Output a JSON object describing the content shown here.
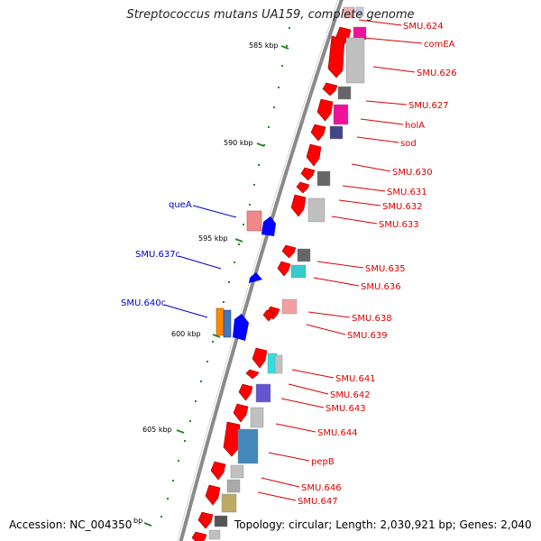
{
  "title": "Streptococcus mutans UA159, complete genome",
  "footer": {
    "accession": "Accession: NC_004350",
    "topology": "Topology: circular; Length: 2,030,921 bp; Genes: 2,040"
  },
  "colors": {
    "backbone": "#8a8a8a",
    "forward_label": "#dd0000",
    "reverse_label": "#0000cc",
    "tick": "#228822",
    "cds_forward": "#ff0000",
    "cds_reverse": "#0000ff"
  },
  "scale_ticks": [
    "585 kbp",
    "590 kbp",
    "595 kbp",
    "600 kbp",
    "605 kbp"
  ],
  "partial_tick_label": "bp",
  "labels_right": [
    "SMU.624",
    "comEA",
    "SMU.626",
    "SMU.627",
    "holA",
    "sod",
    "SMU.630",
    "SMU.631",
    "SMU.632",
    "SMU.633",
    "SMU.635",
    "SMU.636",
    "SMU.638",
    "SMU.639",
    "SMU.641",
    "SMU.642",
    "SMU.643",
    "SMU.644",
    "pepB",
    "SMU.646",
    "SMU.647"
  ],
  "labels_left": [
    "queA",
    "SMU.637c",
    "SMU.640c"
  ]
}
